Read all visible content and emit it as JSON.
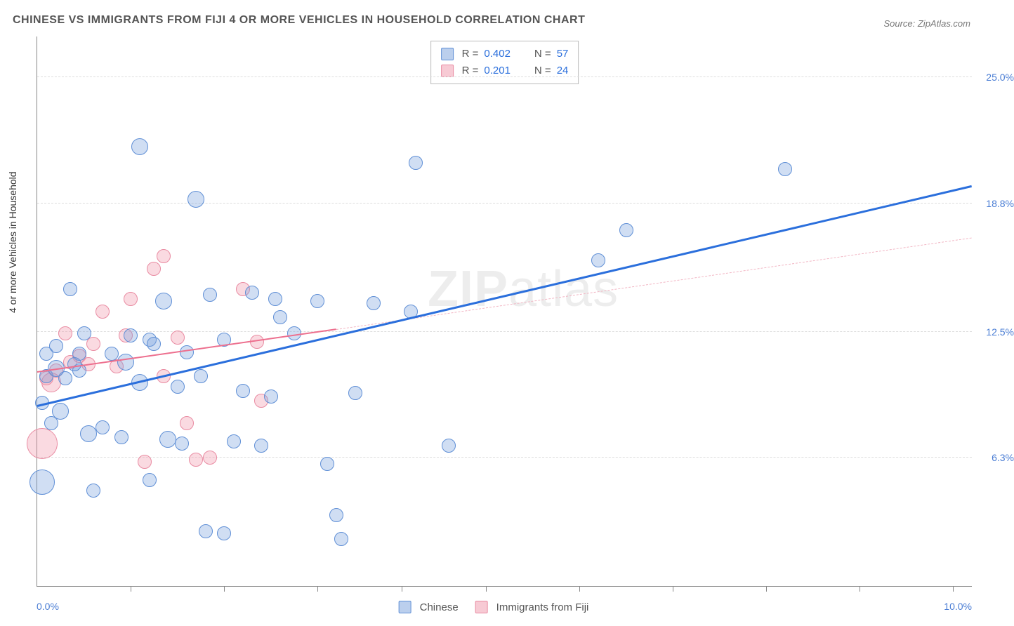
{
  "title": "CHINESE VS IMMIGRANTS FROM FIJI 4 OR MORE VEHICLES IN HOUSEHOLD CORRELATION CHART",
  "source_prefix": "Source: ",
  "source_name": "ZipAtlas.com",
  "watermark_a": "ZIP",
  "watermark_b": "atlas",
  "chart": {
    "type": "scatter",
    "xlim": [
      0,
      10
    ],
    "ylim": [
      0,
      27
    ],
    "x_min_label": "0.0%",
    "x_max_label": "10.0%",
    "y_ticks": [
      {
        "v": 6.3,
        "label": "6.3%"
      },
      {
        "v": 12.5,
        "label": "12.5%"
      },
      {
        "v": 18.8,
        "label": "18.8%"
      },
      {
        "v": 25.0,
        "label": "25.0%"
      }
    ],
    "x_tick_positions": [
      1.0,
      2.0,
      3.0,
      3.9,
      4.8,
      5.8,
      6.8,
      7.8,
      8.8,
      9.8
    ],
    "y_axis_label": "4 or more Vehicles in Household",
    "grid_color": "#dddddd",
    "background_color": "#ffffff",
    "bubble_base_radius": 10,
    "series": {
      "blue": {
        "name": "Chinese",
        "fill": "rgba(120,160,220,0.35)",
        "stroke": "#5f8fd6",
        "trend": {
          "x1": 0.0,
          "y1": 8.8,
          "x2": 10.0,
          "y2": 19.6,
          "style": "solid",
          "color": "#2b6fdc",
          "width": 3
        },
        "points": [
          {
            "x": 0.05,
            "y": 5.1,
            "r": 18
          },
          {
            "x": 0.05,
            "y": 9.0,
            "r": 10
          },
          {
            "x": 0.1,
            "y": 11.4,
            "r": 10
          },
          {
            "x": 0.1,
            "y": 10.3,
            "r": 10
          },
          {
            "x": 0.2,
            "y": 10.7,
            "r": 12
          },
          {
            "x": 0.2,
            "y": 11.8,
            "r": 10
          },
          {
            "x": 0.25,
            "y": 8.6,
            "r": 12
          },
          {
            "x": 0.35,
            "y": 14.6,
            "r": 10
          },
          {
            "x": 0.45,
            "y": 11.4,
            "r": 10
          },
          {
            "x": 0.45,
            "y": 10.6,
            "r": 10
          },
          {
            "x": 0.55,
            "y": 7.5,
            "r": 12
          },
          {
            "x": 0.6,
            "y": 4.7,
            "r": 10
          },
          {
            "x": 0.7,
            "y": 7.8,
            "r": 10
          },
          {
            "x": 0.8,
            "y": 11.4,
            "r": 10
          },
          {
            "x": 0.9,
            "y": 7.3,
            "r": 10
          },
          {
            "x": 0.95,
            "y": 11.0,
            "r": 12
          },
          {
            "x": 1.0,
            "y": 12.3,
            "r": 10
          },
          {
            "x": 1.1,
            "y": 21.6,
            "r": 12
          },
          {
            "x": 1.1,
            "y": 10.0,
            "r": 12
          },
          {
            "x": 1.2,
            "y": 12.1,
            "r": 10
          },
          {
            "x": 1.2,
            "y": 5.2,
            "r": 10
          },
          {
            "x": 1.35,
            "y": 14.0,
            "r": 12
          },
          {
            "x": 1.4,
            "y": 7.2,
            "r": 12
          },
          {
            "x": 1.5,
            "y": 9.8,
            "r": 10
          },
          {
            "x": 1.6,
            "y": 11.5,
            "r": 10
          },
          {
            "x": 1.7,
            "y": 19.0,
            "r": 12
          },
          {
            "x": 1.75,
            "y": 10.3,
            "r": 10
          },
          {
            "x": 1.8,
            "y": 2.7,
            "r": 10
          },
          {
            "x": 1.85,
            "y": 14.3,
            "r": 10
          },
          {
            "x": 2.0,
            "y": 2.6,
            "r": 10
          },
          {
            "x": 2.0,
            "y": 12.1,
            "r": 10
          },
          {
            "x": 2.1,
            "y": 7.1,
            "r": 10
          },
          {
            "x": 2.2,
            "y": 9.6,
            "r": 10
          },
          {
            "x": 2.3,
            "y": 14.4,
            "r": 10
          },
          {
            "x": 2.4,
            "y": 6.9,
            "r": 10
          },
          {
            "x": 2.5,
            "y": 9.3,
            "r": 10
          },
          {
            "x": 2.55,
            "y": 14.1,
            "r": 10
          },
          {
            "x": 2.6,
            "y": 13.2,
            "r": 10
          },
          {
            "x": 2.75,
            "y": 12.4,
            "r": 10
          },
          {
            "x": 3.0,
            "y": 14.0,
            "r": 10
          },
          {
            "x": 3.1,
            "y": 6.0,
            "r": 10
          },
          {
            "x": 3.2,
            "y": 3.5,
            "r": 10
          },
          {
            "x": 3.25,
            "y": 2.3,
            "r": 10
          },
          {
            "x": 3.4,
            "y": 9.5,
            "r": 10
          },
          {
            "x": 3.6,
            "y": 13.9,
            "r": 10
          },
          {
            "x": 4.05,
            "y": 20.8,
            "r": 10
          },
          {
            "x": 4.4,
            "y": 6.9,
            "r": 10
          },
          {
            "x": 6.0,
            "y": 16.0,
            "r": 10
          },
          {
            "x": 6.3,
            "y": 17.5,
            "r": 10
          },
          {
            "x": 8.0,
            "y": 20.5,
            "r": 10
          },
          {
            "x": 0.3,
            "y": 10.2,
            "r": 10
          },
          {
            "x": 0.5,
            "y": 12.4,
            "r": 10
          },
          {
            "x": 4.0,
            "y": 13.5,
            "r": 10
          },
          {
            "x": 1.55,
            "y": 7.0,
            "r": 10
          },
          {
            "x": 0.15,
            "y": 8.0,
            "r": 10
          },
          {
            "x": 1.25,
            "y": 11.9,
            "r": 10
          },
          {
            "x": 0.4,
            "y": 10.9,
            "r": 10
          }
        ]
      },
      "pink": {
        "name": "Immigrants from Fiji",
        "fill": "rgba(240,150,170,0.35)",
        "stroke": "#e98ba2",
        "trend_solid": {
          "x1": 0.0,
          "y1": 10.5,
          "x2": 3.2,
          "y2": 12.6,
          "color": "#ed6f8e",
          "width": 2
        },
        "trend_dash": {
          "x1": 3.2,
          "y1": 12.6,
          "x2": 10.0,
          "y2": 17.1,
          "color": "#f2b6c4",
          "width": 1.5
        },
        "points": [
          {
            "x": 0.05,
            "y": 7.0,
            "r": 22
          },
          {
            "x": 0.1,
            "y": 10.2,
            "r": 10
          },
          {
            "x": 0.15,
            "y": 10.0,
            "r": 14
          },
          {
            "x": 0.2,
            "y": 10.6,
            "r": 10
          },
          {
            "x": 0.3,
            "y": 12.4,
            "r": 10
          },
          {
            "x": 0.35,
            "y": 11.0,
            "r": 10
          },
          {
            "x": 0.45,
            "y": 11.3,
            "r": 10
          },
          {
            "x": 0.55,
            "y": 10.9,
            "r": 10
          },
          {
            "x": 0.6,
            "y": 11.9,
            "r": 10
          },
          {
            "x": 0.7,
            "y": 13.5,
            "r": 10
          },
          {
            "x": 0.85,
            "y": 10.8,
            "r": 10
          },
          {
            "x": 0.95,
            "y": 12.3,
            "r": 10
          },
          {
            "x": 1.0,
            "y": 14.1,
            "r": 10
          },
          {
            "x": 1.15,
            "y": 6.1,
            "r": 10
          },
          {
            "x": 1.25,
            "y": 15.6,
            "r": 10
          },
          {
            "x": 1.35,
            "y": 10.3,
            "r": 10
          },
          {
            "x": 1.35,
            "y": 16.2,
            "r": 10
          },
          {
            "x": 1.5,
            "y": 12.2,
            "r": 10
          },
          {
            "x": 1.6,
            "y": 8.0,
            "r": 10
          },
          {
            "x": 1.7,
            "y": 6.2,
            "r": 10
          },
          {
            "x": 1.85,
            "y": 6.3,
            "r": 10
          },
          {
            "x": 2.2,
            "y": 14.6,
            "r": 10
          },
          {
            "x": 2.35,
            "y": 12.0,
            "r": 10
          },
          {
            "x": 2.4,
            "y": 9.1,
            "r": 10
          }
        ]
      }
    },
    "stats": [
      {
        "swatch": "blue",
        "r_label": "R =",
        "r_val": "0.402",
        "n_label": "N =",
        "n_val": "57"
      },
      {
        "swatch": "pink",
        "r_label": "R =",
        "r_val": "0.201",
        "n_label": "N =",
        "n_val": "24"
      }
    ],
    "legend": [
      {
        "swatch": "blue",
        "label": "Chinese"
      },
      {
        "swatch": "pink",
        "label": "Immigrants from Fiji"
      }
    ]
  }
}
